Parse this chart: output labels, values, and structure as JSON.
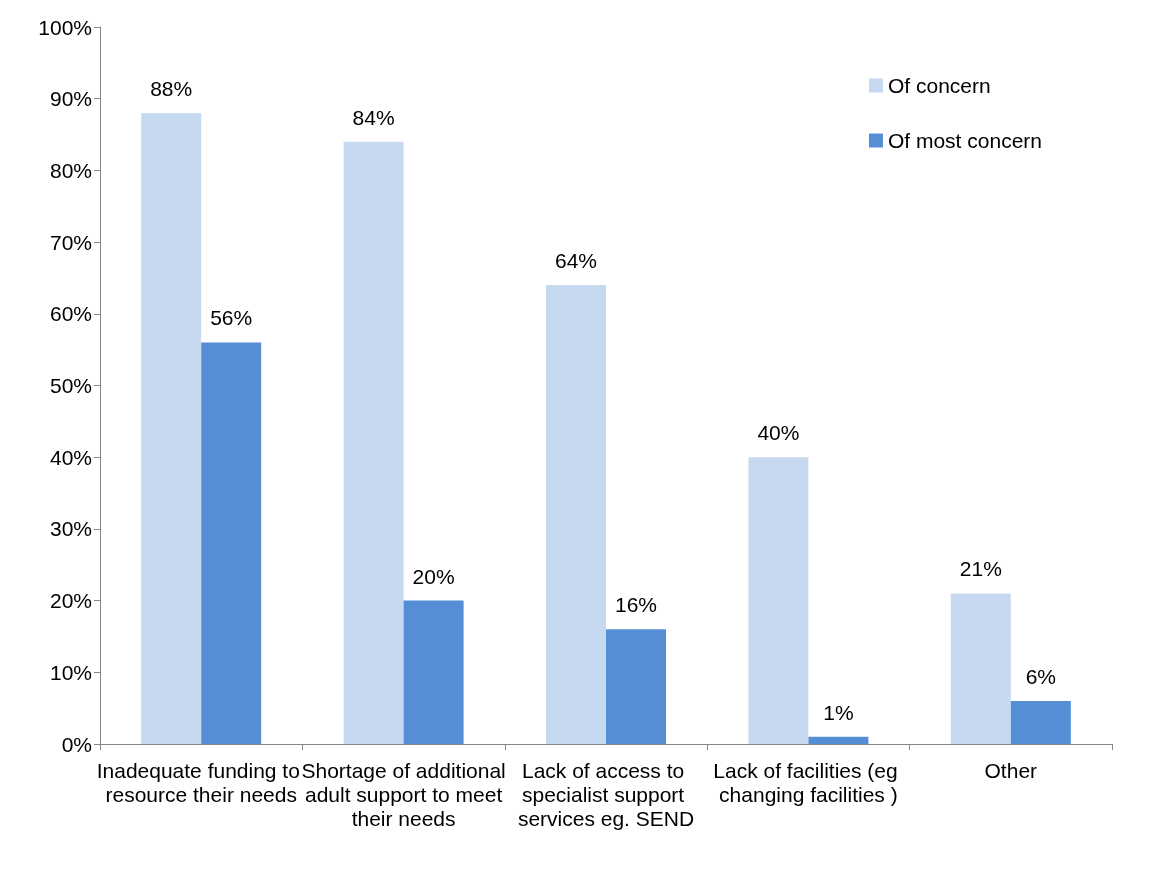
{
  "chart_data": {
    "type": "bar",
    "categories": [
      "Inadequate funding to resource their needs",
      "Shortage of additional adult support to meet their needs",
      "Lack of access to specialist support services eg. SEND",
      "Lack of facilities (eg changing facilities )",
      "Other"
    ],
    "series": [
      {
        "name": "Of concern",
        "color": "#c6d9f1",
        "values": [
          88,
          84,
          64,
          40,
          21
        ],
        "value_labels": [
          "88%",
          "84%",
          "64%",
          "40%",
          "21%"
        ]
      },
      {
        "name": "Of most concern",
        "color": "#558ed5",
        "values": [
          56,
          20,
          16,
          1,
          6
        ],
        "value_labels": [
          "56%",
          "20%",
          "16%",
          "1%",
          "6%"
        ]
      }
    ],
    "ylim": [
      0,
      100
    ],
    "yticks": [
      {
        "value": 0,
        "label": "0%"
      },
      {
        "value": 10,
        "label": "10%"
      },
      {
        "value": 20,
        "label": "20%"
      },
      {
        "value": 30,
        "label": "30%"
      },
      {
        "value": 40,
        "label": "40%"
      },
      {
        "value": 50,
        "label": "50%"
      },
      {
        "value": 60,
        "label": "60%"
      },
      {
        "value": 70,
        "label": "70%"
      },
      {
        "value": 80,
        "label": "80%"
      },
      {
        "value": 90,
        "label": "90%"
      },
      {
        "value": 100,
        "label": "100%"
      }
    ],
    "grid": false,
    "legend": "top right"
  }
}
